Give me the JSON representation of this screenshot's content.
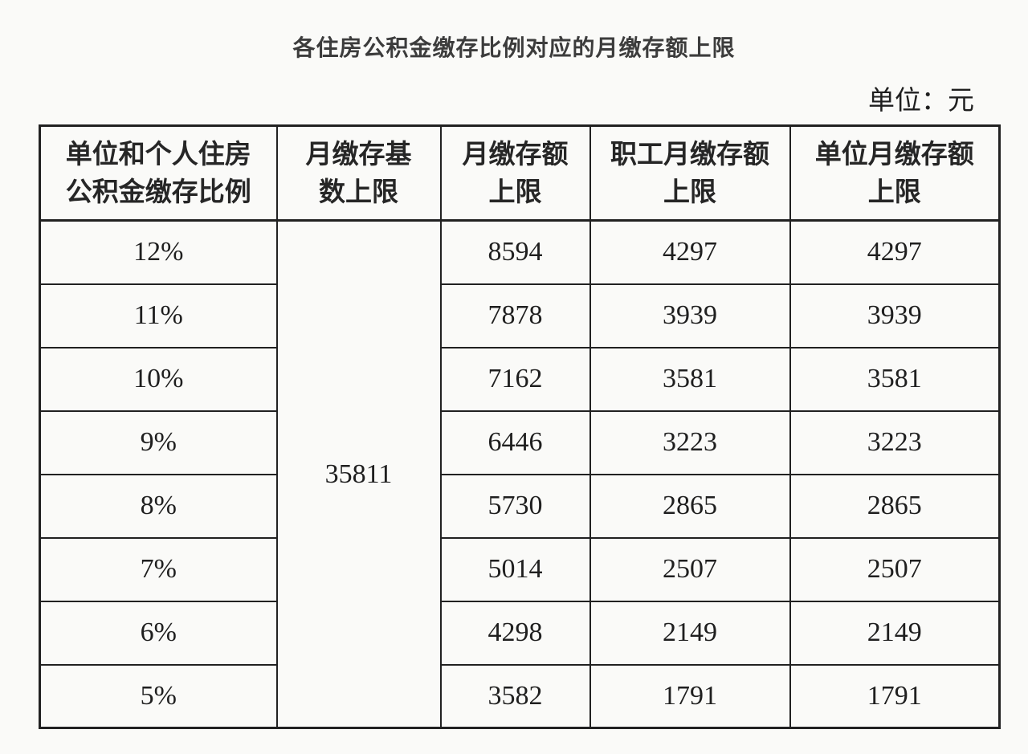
{
  "page": {
    "title": "各住房公积金缴存比例对应的月缴存额上限",
    "unit_label": "单位：元"
  },
  "table": {
    "headers": [
      "单位和个人住房\n公积金缴存比例",
      "月缴存基\n数上限",
      "月缴存额\n上限",
      "职工月缴存额\n上限",
      "单位月缴存额\n上限"
    ],
    "merged_base_value": "35811",
    "rows": [
      {
        "rate": "12%",
        "monthly_cap": "8594",
        "employee_cap": "4297",
        "employer_cap": "4297"
      },
      {
        "rate": "11%",
        "monthly_cap": "7878",
        "employee_cap": "3939",
        "employer_cap": "3939"
      },
      {
        "rate": "10%",
        "monthly_cap": "7162",
        "employee_cap": "3581",
        "employer_cap": "3581"
      },
      {
        "rate": "9%",
        "monthly_cap": "6446",
        "employee_cap": "3223",
        "employer_cap": "3223"
      },
      {
        "rate": "8%",
        "monthly_cap": "5730",
        "employee_cap": "2865",
        "employer_cap": "2865"
      },
      {
        "rate": "7%",
        "monthly_cap": "5014",
        "employee_cap": "2507",
        "employer_cap": "2507"
      },
      {
        "rate": "6%",
        "monthly_cap": "4298",
        "employee_cap": "2149",
        "employer_cap": "2149"
      },
      {
        "rate": "5%",
        "monthly_cap": "3582",
        "employee_cap": "1791",
        "employer_cap": "1791"
      }
    ]
  },
  "colors": {
    "paper": "#fafaf8",
    "ink": "#1f1f1f",
    "title_ink": "#3c3c3c",
    "border": "#212121"
  }
}
